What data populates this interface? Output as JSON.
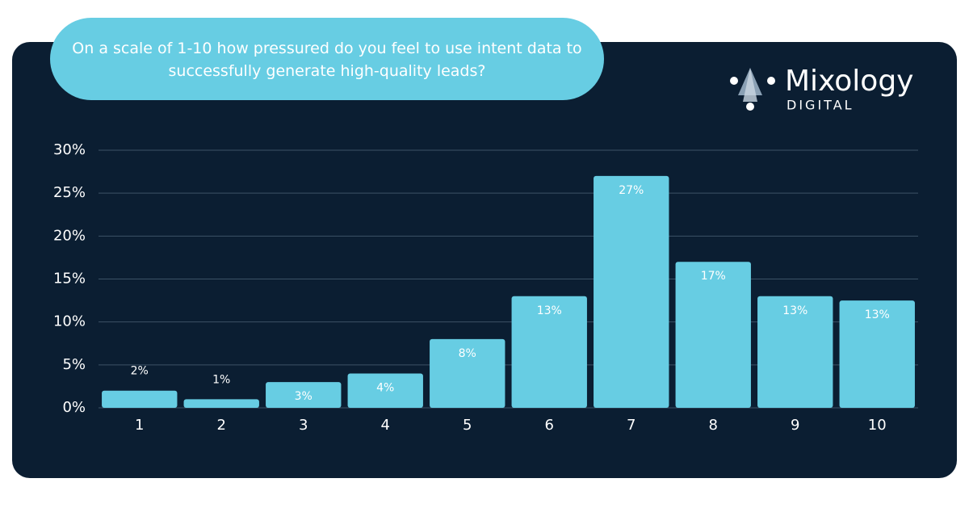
{
  "chart_data": {
    "type": "bar",
    "title": "On a scale of 1-10 how pressured do you feel to use intent data to successfully generate high-quality leads?",
    "brand": "Mixology",
    "brand_sub": "DIGITAL",
    "categories": [
      "1",
      "2",
      "3",
      "4",
      "5",
      "6",
      "7",
      "8",
      "9",
      "10"
    ],
    "values": [
      2,
      1,
      3,
      4,
      8,
      13,
      27,
      17,
      13,
      12.5
    ],
    "value_labels": [
      "2%",
      "1%",
      "3%",
      "4%",
      "8%",
      "13%",
      "27%",
      "17%",
      "13%",
      "13%"
    ],
    "color": "#67cde3",
    "ylim": [
      0,
      30
    ],
    "yticks": [
      {
        "value": 0,
        "label": "0%"
      },
      {
        "value": 5,
        "label": "5%"
      },
      {
        "value": 10,
        "label": "10%"
      },
      {
        "value": 15,
        "label": "15%"
      },
      {
        "value": 20,
        "label": "20%"
      },
      {
        "value": 25,
        "label": "25%"
      },
      {
        "value": 30,
        "label": "30%"
      }
    ],
    "grid": true
  }
}
